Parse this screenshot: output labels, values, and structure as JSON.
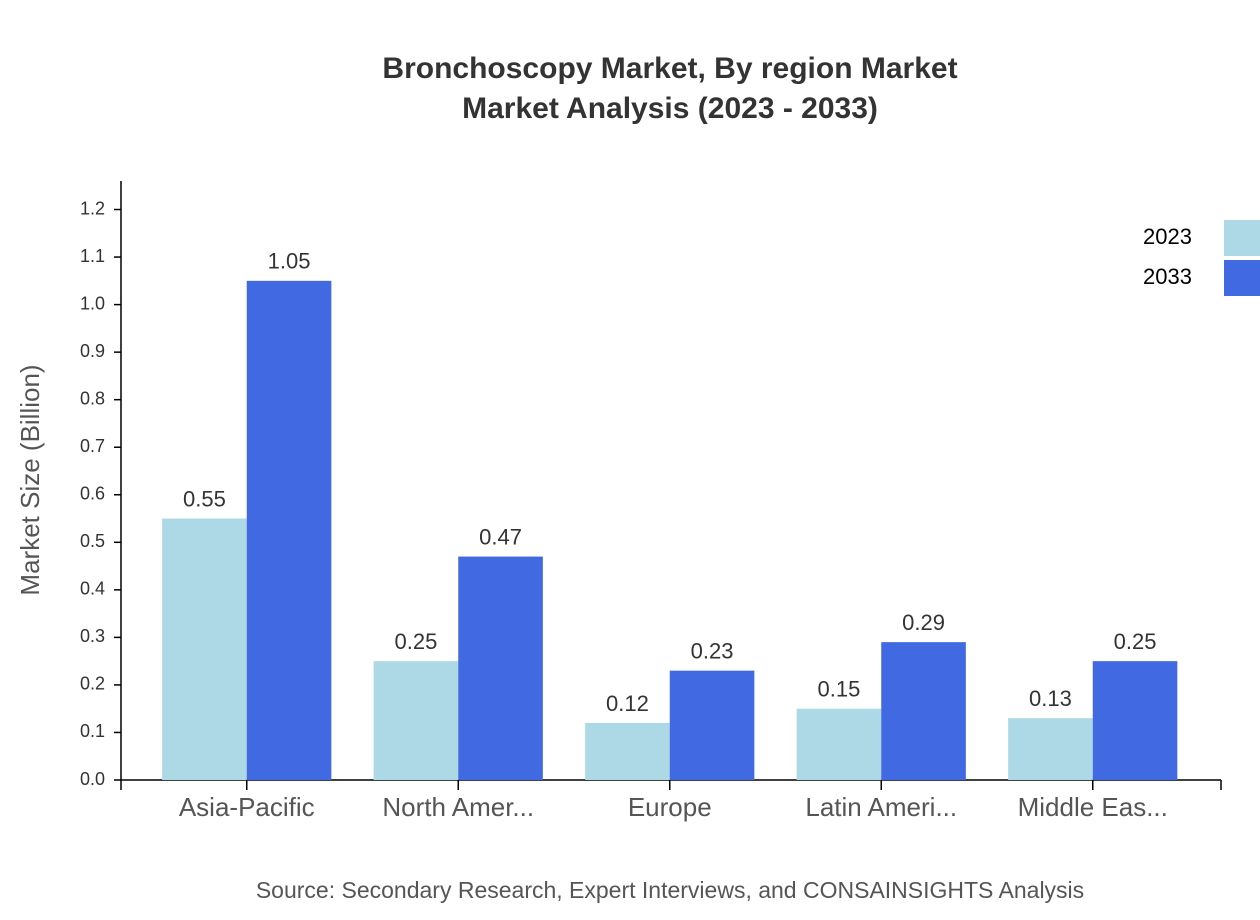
{
  "chart_data": {
    "type": "bar",
    "title": [
      "Bronchoscopy Market, By region Market",
      "Market Analysis (2023 - 2033)"
    ],
    "y_label": "Market Size (Billion)",
    "source": "Source: Secondary Research, Expert Interviews, and CONSAINSIGHTS Analysis",
    "categories": [
      "Asia-Pacific",
      "North Amer...",
      "Europe",
      "Latin Ameri...",
      "Middle Eas..."
    ],
    "series": [
      {
        "name": "2023",
        "color": "#add8e6",
        "values": [
          0.55,
          0.25,
          0.12,
          0.15,
          0.13
        ]
      },
      {
        "name": "2033",
        "color": "#4169e1",
        "values": [
          1.05,
          0.47,
          0.23,
          0.29,
          0.25
        ]
      }
    ],
    "ylim": [
      0,
      1.26
    ],
    "yticks": [
      {
        "value": 0,
        "label": "0.0"
      },
      0.1,
      0.2,
      0.3,
      0.4,
      0.5,
      0.6,
      0.7,
      0.8,
      0.9,
      {
        "value": 1,
        "label": "1.0"
      },
      1.1,
      1.2
    ],
    "legend": "top-right"
  }
}
